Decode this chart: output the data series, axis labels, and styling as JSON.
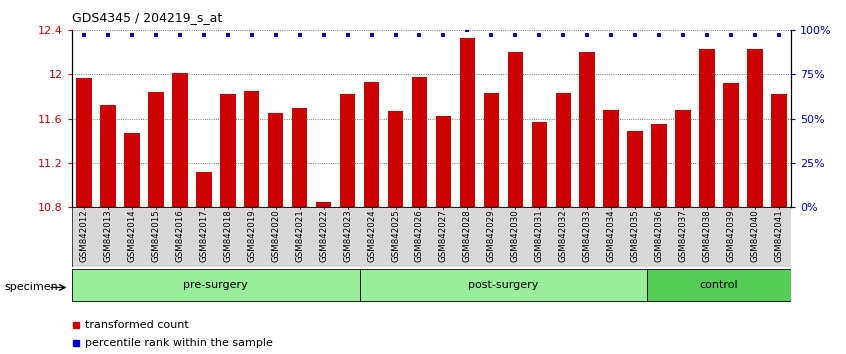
{
  "title": "GDS4345 / 204219_s_at",
  "samples": [
    "GSM842012",
    "GSM842013",
    "GSM842014",
    "GSM842015",
    "GSM842016",
    "GSM842017",
    "GSM842018",
    "GSM842019",
    "GSM842020",
    "GSM842021",
    "GSM842022",
    "GSM842023",
    "GSM842024",
    "GSM842025",
    "GSM842026",
    "GSM842027",
    "GSM842028",
    "GSM842029",
    "GSM842030",
    "GSM842031",
    "GSM842032",
    "GSM842033",
    "GSM842034",
    "GSM842035",
    "GSM842036",
    "GSM842037",
    "GSM842038",
    "GSM842039",
    "GSM842040",
    "GSM842041"
  ],
  "red_values": [
    11.97,
    11.72,
    11.47,
    11.84,
    12.01,
    11.12,
    11.82,
    11.85,
    11.65,
    11.7,
    10.85,
    11.82,
    11.93,
    11.67,
    11.98,
    11.62,
    12.33,
    11.83,
    12.2,
    11.57,
    11.83,
    12.2,
    11.68,
    11.49,
    11.55,
    11.68,
    12.23,
    11.92,
    12.23,
    11.82
  ],
  "blue_percentiles": [
    97,
    97,
    97,
    97,
    97,
    97,
    97,
    97,
    97,
    97,
    97,
    97,
    97,
    97,
    97,
    97,
    100,
    97,
    97,
    97,
    97,
    97,
    97,
    97,
    97,
    97,
    97,
    97,
    97,
    97
  ],
  "ylim_left": [
    10.8,
    12.4
  ],
  "ylim_right": [
    0,
    100
  ],
  "yticks_left": [
    10.8,
    11.2,
    11.6,
    12.0,
    12.4
  ],
  "yticks_right": [
    0,
    25,
    50,
    75,
    100
  ],
  "ytick_labels_left": [
    "10.8",
    "11.2",
    "11.6",
    "12",
    "12.4"
  ],
  "ytick_labels_right": [
    "0%",
    "25%",
    "50%",
    "75%",
    "100%"
  ],
  "bar_color": "#CC0000",
  "dot_color": "#0000CC",
  "group_info": [
    {
      "label": "pre-surgery",
      "start": 0,
      "end": 11,
      "color": "#99ee99"
    },
    {
      "label": "post-surgery",
      "start": 12,
      "end": 23,
      "color": "#99ee99"
    },
    {
      "label": "control",
      "start": 24,
      "end": 29,
      "color": "#55cc55"
    }
  ],
  "legend_items": [
    {
      "label": "transformed count",
      "color": "#CC0000"
    },
    {
      "label": "percentile rank within the sample",
      "color": "#0000CC"
    }
  ],
  "specimen_label": "specimen",
  "bg_color": "#ffffff"
}
